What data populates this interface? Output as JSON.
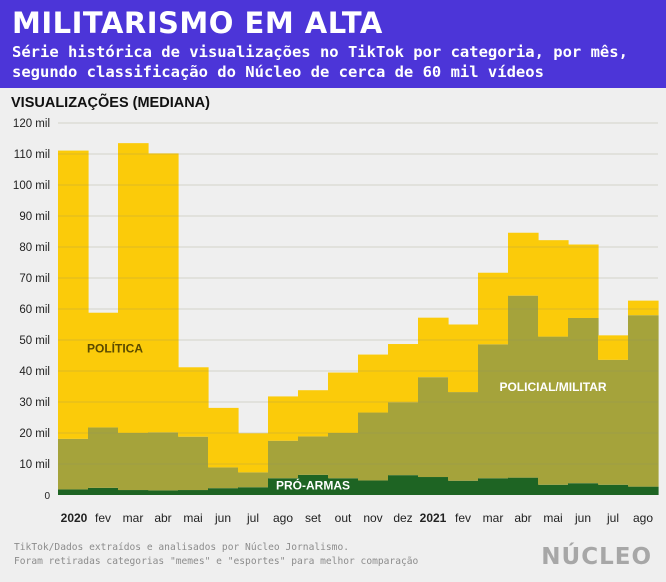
{
  "header": {
    "title": "MILITARISMO EM ALTA",
    "subtitle": "Série histórica de visualizações no TikTok por categoria, por mês, segundo classificação do Núcleo de cerca de 60 mil vídeos"
  },
  "footer": {
    "source_line1": "TikTok/Dados extraídos e analisados por Núcleo Jornalismo.",
    "source_line2": "Foram retiradas categorias \"memes\" e \"esportes\" para melhor comparação",
    "logo": "NÚCLEO"
  },
  "colors": {
    "politica": "#fbcb0a",
    "policial": "#a5a33b",
    "pro_armas": "#1e6423",
    "background": "#efefef",
    "header": "#4c35d8"
  },
  "chart_data": {
    "type": "area",
    "stacking": "stacked",
    "title": "MILITARISMO EM ALTA",
    "ylabel": "VISUALIZAÇÕES (MEDIANA)",
    "ylim": [
      0,
      120000
    ],
    "yticks": [
      0,
      10000,
      20000,
      30000,
      40000,
      50000,
      60000,
      70000,
      80000,
      90000,
      100000,
      110000,
      120000
    ],
    "ytick_labels": [
      "0",
      "10 mil",
      "20 mil",
      "30 mil",
      "40 mil",
      "50 mil",
      "60 mil",
      "70 mil",
      "80 mil",
      "90 mil",
      "100 mil",
      "110 mil",
      "120 mil"
    ],
    "grid": true,
    "categories": [
      "2020",
      "fev",
      "mar",
      "abr",
      "mai",
      "jun",
      "jul",
      "ago",
      "set",
      "out",
      "nov",
      "dez",
      "2021",
      "fev",
      "mar",
      "abr",
      "mai",
      "jun",
      "jul",
      "ago"
    ],
    "bold_categories": [
      "2020",
      "2021"
    ],
    "series": [
      {
        "name": "PRÓ-ARMAS",
        "values": [
          1800,
          2300,
          1600,
          1500,
          1600,
          2200,
          2500,
          5400,
          6500,
          5400,
          4700,
          6400,
          5800,
          4600,
          5400,
          5600,
          3300,
          3800,
          3300,
          2700
        ]
      },
      {
        "name": "POLICIAL/MILITAR",
        "values": [
          16300,
          19500,
          18400,
          18700,
          17200,
          6700,
          4800,
          12100,
          12400,
          14600,
          21900,
          23500,
          32200,
          28600,
          43200,
          58700,
          47800,
          53300,
          40300,
          55300
        ]
      },
      {
        "name": "POLÍTICA",
        "values": [
          93000,
          37000,
          93500,
          90000,
          22400,
          19200,
          12600,
          14300,
          14900,
          19500,
          18700,
          18800,
          19200,
          21800,
          23100,
          20300,
          31100,
          23700,
          7900,
          4700
        ]
      }
    ]
  }
}
